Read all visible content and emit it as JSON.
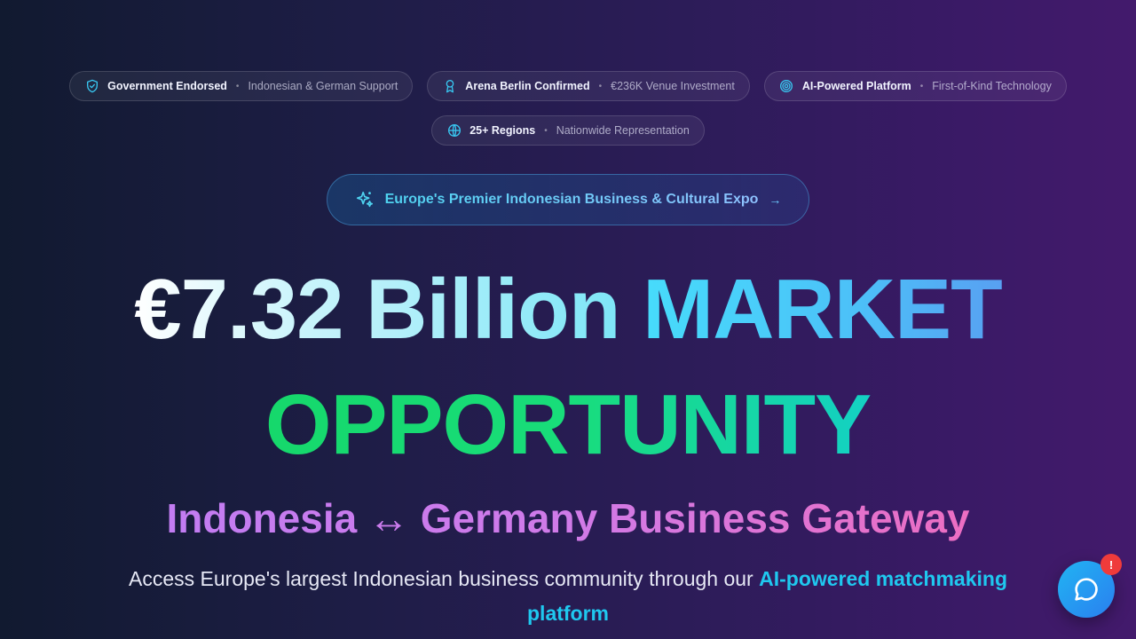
{
  "badges": [
    {
      "title": "Government Endorsed",
      "sub": "Indonesian & German Support",
      "icon": "shield-check-icon"
    },
    {
      "title": "Arena Berlin Confirmed",
      "sub": "€236K Venue Investment",
      "icon": "award-icon"
    },
    {
      "title": "AI-Powered Platform",
      "sub": "First-of-Kind Technology",
      "icon": "target-icon"
    },
    {
      "title": "25+ Regions",
      "sub": "Nationwide Representation",
      "icon": "globe-icon"
    }
  ],
  "separator": "•",
  "announcement": {
    "label": "Europe's Premier Indonesian Business & Cultural Expo",
    "arrow": "→"
  },
  "headline": {
    "part1": "€7.32 Billion",
    "part2": "MARKET",
    "part3": "OPPORTUNITY"
  },
  "subheadline": "Indonesia ↔ Germany Business Gateway",
  "description": {
    "text": "Access Europe's largest Indonesian business community through our ",
    "highlight": "AI-powered matchmaking platform"
  },
  "chat": {
    "badge": "!",
    "icon": "chat-bubble-icon"
  },
  "colors": {
    "accent_cyan": "#1fc8ef",
    "accent_green": "#16d86b",
    "accent_pink": "#d07ae8",
    "badge_red": "#ef3b3b"
  }
}
